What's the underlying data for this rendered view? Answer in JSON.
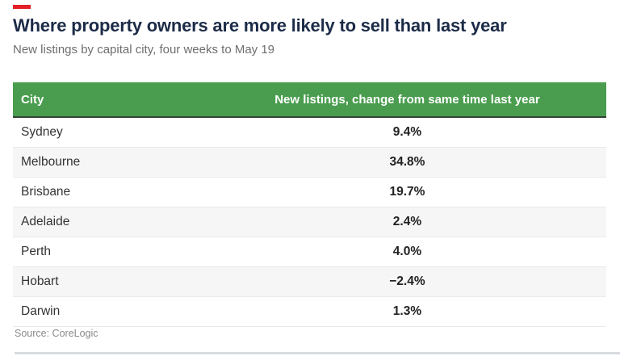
{
  "colors": {
    "brand_red": "#e41e26",
    "header_green": "#4a9d4f",
    "header_border": "#344335",
    "title_navy": "#1c2b47",
    "stripe_gray": "#f6f6f6"
  },
  "header": {
    "title": "Where property owners are more likely to sell than last year",
    "subtitle": "New listings by capital city, four weeks to May 19"
  },
  "table": {
    "columns": [
      "City",
      "New listings, change from same time last year"
    ],
    "rows": [
      {
        "city": "Sydney",
        "change": "9.4%"
      },
      {
        "city": "Melbourne",
        "change": "34.8%"
      },
      {
        "city": "Brisbane",
        "change": "19.7%"
      },
      {
        "city": "Adelaide",
        "change": "2.4%"
      },
      {
        "city": "Perth",
        "change": "4.0%"
      },
      {
        "city": "Hobart",
        "change": "−2.4%"
      },
      {
        "city": "Darwin",
        "change": "1.3%"
      }
    ]
  },
  "footer": {
    "source": "Source: CoreLogic"
  },
  "chart_data": {
    "type": "table",
    "title": "Where property owners are more likely to sell than last year",
    "subtitle": "New listings by capital city, four weeks to May 19",
    "columns": [
      "City",
      "New listings, change from same time last year"
    ],
    "categories": [
      "Sydney",
      "Melbourne",
      "Brisbane",
      "Adelaide",
      "Perth",
      "Hobart",
      "Darwin"
    ],
    "values": [
      9.4,
      34.8,
      19.7,
      2.4,
      4.0,
      -2.4,
      1.3
    ],
    "value_unit": "%",
    "source": "Source: CoreLogic"
  }
}
